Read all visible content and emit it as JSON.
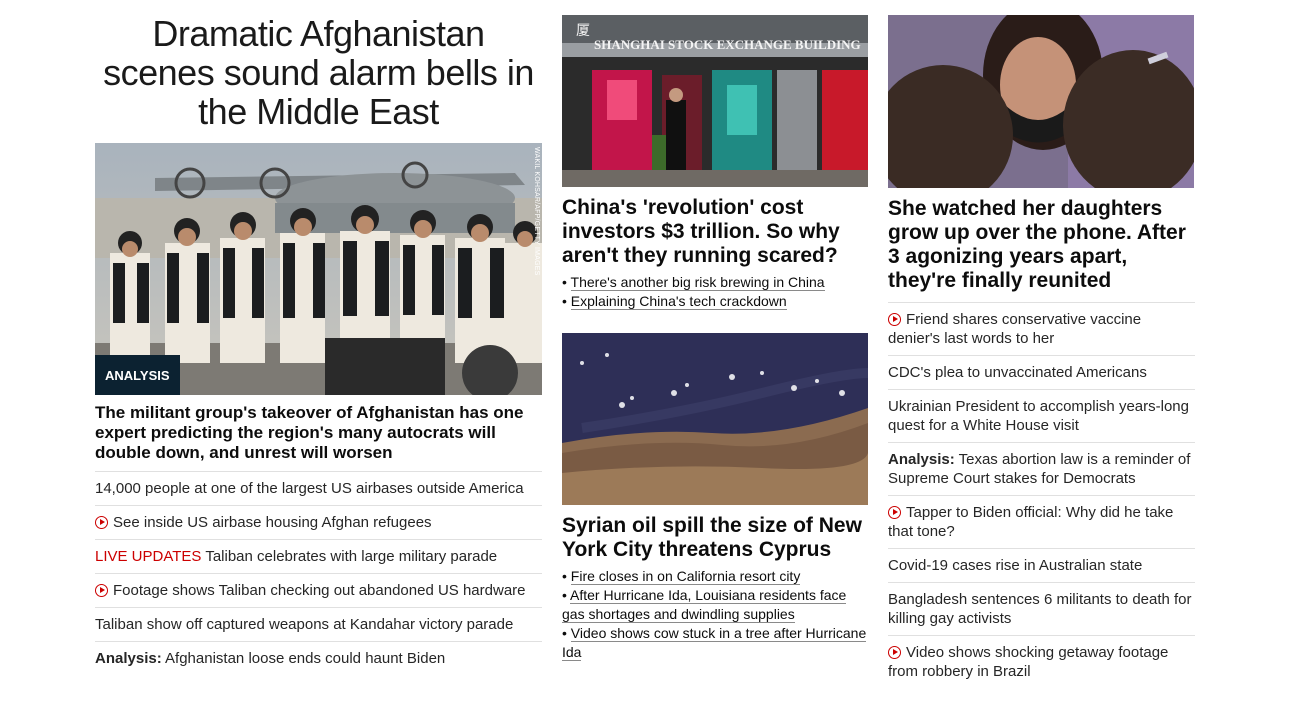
{
  "col1": {
    "headline": "Dramatic Afghanistan scenes sound alarm bells in the Middle East",
    "badge": "ANALYSIS",
    "photo_credit": "WAKIL KOHSAR/AFP/GETTY IMAGES",
    "subhead": "The militant group's takeover of Afghanistan has one expert predicting the region's many autocrats will double down, and unrest will worsen",
    "items": [
      {
        "text": "14,000 people at one of the largest US airbases outside America"
      },
      {
        "text": "See inside US airbase housing Afghan refugees"
      },
      {
        "prefix": "LIVE UPDATES",
        "text": "Taliban celebrates with large military parade"
      },
      {
        "text": "Footage shows Taliban checking out abandoned US hardware"
      },
      {
        "text": "Taliban show off captured weapons at Kandahar victory parade"
      },
      {
        "prefix": "Analysis:",
        "text": "Afghanistan loose ends could haunt Biden"
      }
    ]
  },
  "col2": {
    "card1": {
      "sign_text": "SHANGHAI STOCK EXCHANGE BUILDING",
      "sign_glyph": "厦",
      "title": "China's 'revolution' cost investors $3 trillion. So why aren't they running scared?",
      "bullets": [
        "There's another big risk brewing in China",
        "Explaining China's tech crackdown"
      ]
    },
    "card2": {
      "title": "Syrian oil spill the size of New York City threatens Cyprus",
      "bullets": [
        "Fire closes in on California resort city",
        "After Hurricane Ida, Louisiana residents face gas shortages and dwindling supplies",
        "Video shows cow stuck in a tree after Hurricane Ida"
      ]
    }
  },
  "col3": {
    "title": "She watched her daughters grow up over the phone. After 3 agonizing years apart, they're finally reunited",
    "items": [
      {
        "text": "Friend shares conservative vaccine denier's last words to her"
      },
      {
        "text": "CDC's plea to unvaccinated Americans"
      },
      {
        "text": "Ukrainian President to accomplish years-long quest for a White House visit"
      },
      {
        "prefix": "Analysis:",
        "text": "Texas abortion law is a reminder of Supreme Court stakes for Democrats"
      },
      {
        "text": "Tapper to Biden official: Why did he take that tone?"
      },
      {
        "text": "Covid-19 cases rise in Australian state"
      },
      {
        "text": "Bangladesh sentences 6 militants to death for killing gay activists"
      },
      {
        "text": "Video shows shocking getaway footage from robbery in Brazil"
      }
    ]
  },
  "colors": {
    "accent_red": "#cc0000",
    "badge_bg": "#0c2231",
    "divider": "#e0e0e0"
  },
  "icons": {
    "video": "play-circle-icon"
  }
}
